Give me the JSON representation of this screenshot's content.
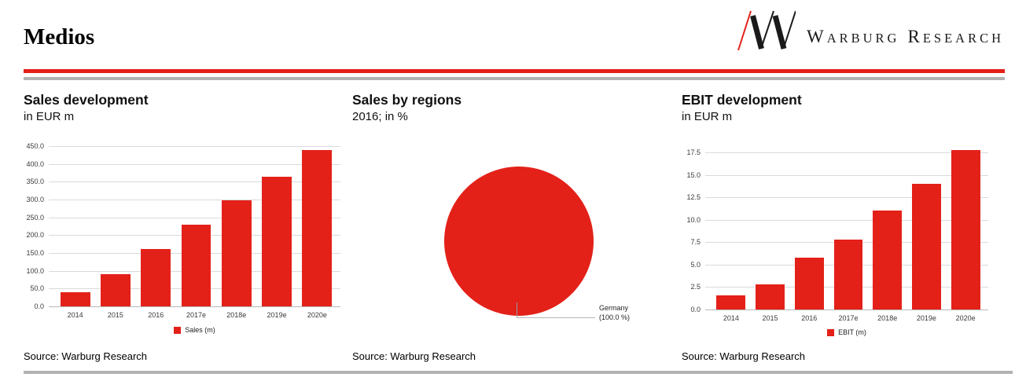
{
  "header": {
    "title": "Medios",
    "brand": {
      "mark": "warburg-slash-w-logo",
      "word1_initial": "W",
      "word1_rest": "ARBURG",
      "word2_initial": "R",
      "word2_rest": "ESEARCH"
    }
  },
  "colors": {
    "accent_red": "#e32119",
    "rule_gray": "#b2b2b2",
    "gridline": "#dadada"
  },
  "chart_data": [
    {
      "type": "bar",
      "title": "Sales development",
      "subtitle": "in EUR m",
      "categories": [
        "2014",
        "2015",
        "2016",
        "2017e",
        "2018e",
        "2019e",
        "2020e"
      ],
      "values": [
        40,
        90,
        160,
        230,
        297,
        365,
        440
      ],
      "ylim": [
        0,
        450
      ],
      "ytick_step": 50,
      "ytick_decimals": 1,
      "grid": true,
      "legend_label": "Sales (m)",
      "legend_position": "bottom",
      "bar_color": "#e32119"
    },
    {
      "type": "pie",
      "title": "Sales by regions",
      "subtitle": "2016; in %",
      "slices": [
        {
          "label": "Germany",
          "value": 100.0,
          "color": "#e32119"
        }
      ],
      "callout_line1": "Germany",
      "callout_line2": "(100.0 %)"
    },
    {
      "type": "bar",
      "title": "EBIT development",
      "subtitle": "in EUR m",
      "categories": [
        "2014",
        "2015",
        "2016",
        "2017e",
        "2018e",
        "2019e",
        "2020e"
      ],
      "values": [
        1.6,
        2.8,
        5.8,
        7.8,
        11.0,
        14.0,
        17.8
      ],
      "ylim": [
        0,
        17.5
      ],
      "ytick_step": 2.5,
      "ytick_decimals": 1,
      "grid": true,
      "legend_label": "EBIT (m)",
      "legend_position": "bottom",
      "bar_color": "#e32119"
    }
  ],
  "sources": [
    "Source: Warburg Research",
    "Source: Warburg Research",
    "Source: Warburg Research"
  ]
}
